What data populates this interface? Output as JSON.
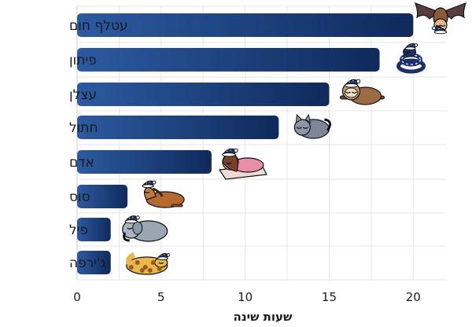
{
  "chart_data": {
    "type": "bar",
    "orientation": "horizontal",
    "categories": [
      "עטלף חום",
      "פיתון",
      "עצלן",
      "חתול",
      "אדם",
      "סוס",
      "פיל",
      "ג'ירפה"
    ],
    "values": [
      20,
      18,
      15,
      12,
      8,
      3,
      2,
      2
    ],
    "animals": [
      "bat-icon",
      "python-icon",
      "sloth-icon",
      "cat-icon",
      "person-icon",
      "horse-icon",
      "elephant-icon",
      "giraffe-icon"
    ],
    "xlabel": "שעות שינה",
    "xticks": [
      0,
      5,
      10,
      15,
      20
    ],
    "xlim": [
      0,
      22
    ],
    "grid": true,
    "bar_color_start": "#2c5aa0",
    "bar_color_end": "#0f2a5c",
    "nightcap_color": "#22356b"
  }
}
